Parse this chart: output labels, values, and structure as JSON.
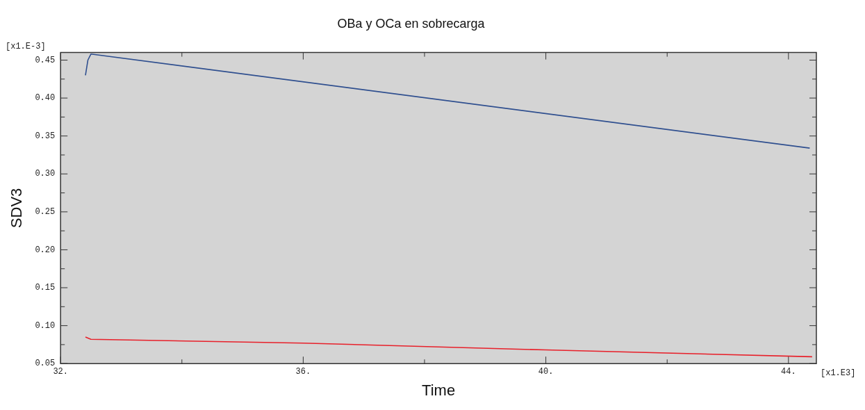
{
  "chart_data": {
    "type": "line",
    "title": "OBa y OCa en sobrecarga",
    "xlabel": "Time",
    "ylabel": "SDV3",
    "annotations": [
      "[x1.E-3]",
      "[x1.E3]"
    ],
    "xlim": [
      32,
      44.46
    ],
    "xticks": [
      {
        "value": 32,
        "label": "32."
      },
      {
        "value": 34,
        "label": null
      },
      {
        "value": 36,
        "label": "36."
      },
      {
        "value": 38,
        "label": null
      },
      {
        "value": 40,
        "label": "40."
      },
      {
        "value": 42,
        "label": null
      },
      {
        "value": 44,
        "label": "44."
      }
    ],
    "ylim": [
      0.05,
      0.46
    ],
    "yticks": [
      0.05,
      {
        "value": 0.075,
        "label": null
      },
      {
        "value": 0.1,
        "label": "0.10"
      },
      {
        "value": 0.125,
        "label": null
      },
      0.15,
      {
        "value": 0.175,
        "label": null
      },
      {
        "value": 0.2,
        "label": "0.20"
      },
      {
        "value": 0.225,
        "label": null
      },
      0.25,
      {
        "value": 0.275,
        "label": null
      },
      {
        "value": 0.3,
        "label": "0.30"
      },
      {
        "value": 0.325,
        "label": null
      },
      0.35,
      {
        "value": 0.375,
        "label": null
      },
      {
        "value": 0.4,
        "label": "0.40"
      },
      {
        "value": 0.425,
        "label": null
      },
      0.45
    ],
    "grid": false,
    "legend": false,
    "marker": "none",
    "line_style": "solid",
    "series": [
      {
        "color": "#2f4f8f",
        "x": [
          32.41,
          32.45,
          32.5,
          44.35
        ],
        "values": [
          0.43,
          0.45,
          0.458,
          0.334
        ]
      },
      {
        "color": "#e8202a",
        "x": [
          32.41,
          32.5,
          36,
          40,
          44.39
        ],
        "values": [
          0.085,
          0.082,
          0.077,
          0.068,
          0.059
        ]
      }
    ]
  }
}
